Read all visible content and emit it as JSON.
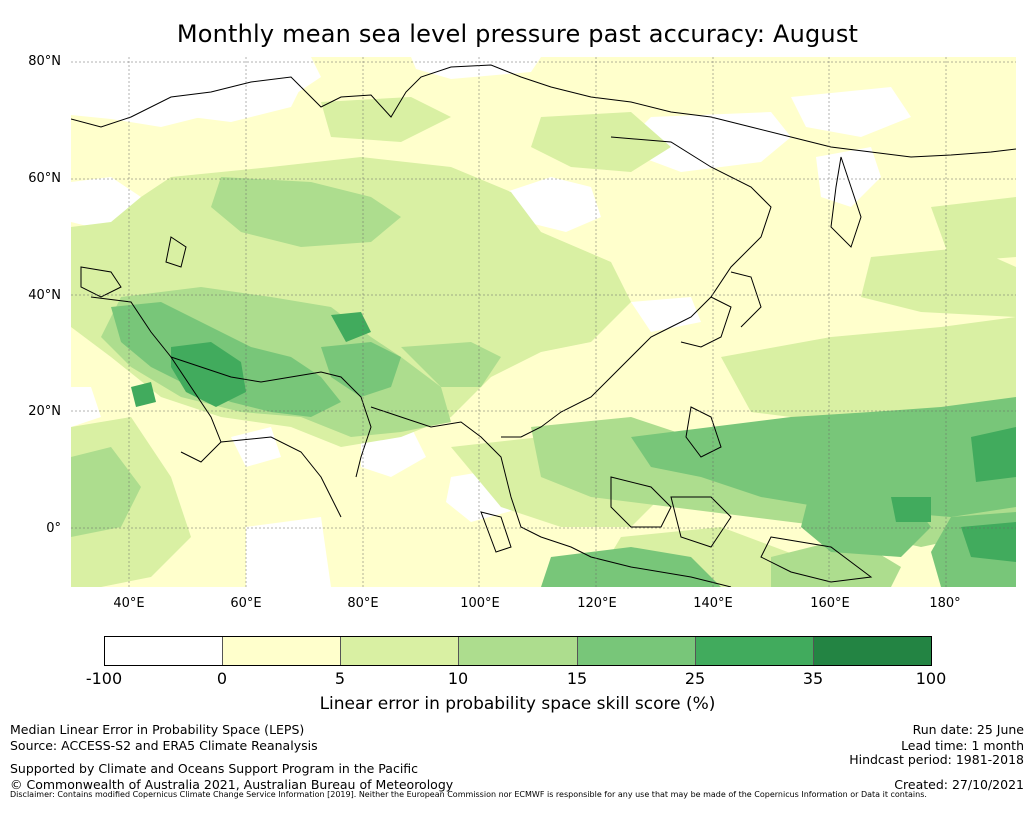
{
  "title": "Monthly mean sea level pressure past accuracy: August",
  "map": {
    "lat_labels": [
      "80°N",
      "60°N",
      "40°N",
      "20°N",
      "0°"
    ],
    "lon_labels": [
      "40°E",
      "60°E",
      "80°E",
      "100°E",
      "120°E",
      "140°E",
      "160°E",
      "180°"
    ],
    "lat_range": [
      -10,
      80
    ],
    "lon_range": [
      30,
      192
    ],
    "gridlines": true
  },
  "colorbar": {
    "ticks": [
      "-100",
      "0",
      "5",
      "10",
      "15",
      "25",
      "35",
      "100"
    ],
    "colors": [
      "#ffffff",
      "#ffffcc",
      "#d9f0a3",
      "#addd8e",
      "#78c679",
      "#41ab5d",
      "#238443"
    ],
    "label": "Linear error in probability space skill score (%)"
  },
  "footer": {
    "line1": "Median Linear Error in Probability Space (LEPS)",
    "line2": "Source: ACCESS-S2 and ERA5 Climate Reanalysis",
    "line3": "Supported by Climate and Oceans Support Program in the Pacific",
    "line4": "© Commonwealth of Australia 2021, Australian Bureau of Meteorology",
    "run_date": "Run date: 25 June",
    "lead_time": "Lead time: 1 month",
    "hindcast": "Hindcast period: 1981-2018",
    "created": "Created: 27/10/2021",
    "disclaimer": "Disclaimer: Contains modified Copernicus Climate Change Service Information [2019]. Neither the European Commission nor ECMWF is responsible for any use that may be made of the Copernicus Information or Data it contains."
  }
}
